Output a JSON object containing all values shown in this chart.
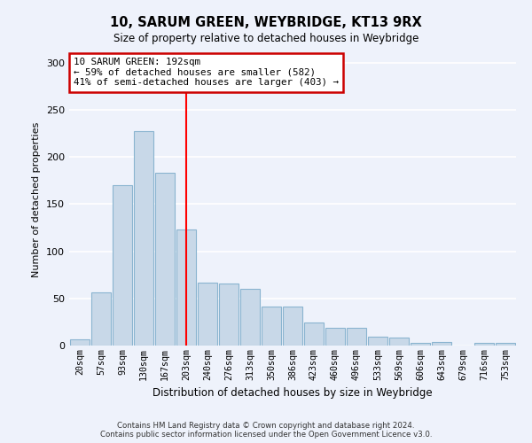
{
  "title": "10, SARUM GREEN, WEYBRIDGE, KT13 9RX",
  "subtitle": "Size of property relative to detached houses in Weybridge",
  "xlabel": "Distribution of detached houses by size in Weybridge",
  "ylabel": "Number of detached properties",
  "bar_color": "#c8d8e8",
  "bar_edge_color": "#8ab4d0",
  "background_color": "#eef2fb",
  "grid_color": "#ffffff",
  "categories": [
    "20sqm",
    "57sqm",
    "93sqm",
    "130sqm",
    "167sqm",
    "203sqm",
    "240sqm",
    "276sqm",
    "313sqm",
    "350sqm",
    "386sqm",
    "423sqm",
    "460sqm",
    "496sqm",
    "533sqm",
    "569sqm",
    "606sqm",
    "643sqm",
    "679sqm",
    "716sqm",
    "753sqm"
  ],
  "values": [
    7,
    56,
    170,
    227,
    183,
    123,
    67,
    66,
    60,
    41,
    41,
    24,
    19,
    19,
    9,
    8,
    3,
    4,
    0,
    3,
    3
  ],
  "ylim": [
    0,
    310
  ],
  "yticks": [
    0,
    50,
    100,
    150,
    200,
    250,
    300
  ],
  "vline_x": 5.0,
  "annotation_text": "10 SARUM GREEN: 192sqm\n← 59% of detached houses are smaller (582)\n41% of semi-detached houses are larger (403) →",
  "annotation_box_color": "#ffffff",
  "annotation_box_edge_color": "#cc0000",
  "footer_line1": "Contains HM Land Registry data © Crown copyright and database right 2024.",
  "footer_line2": "Contains public sector information licensed under the Open Government Licence v3.0."
}
